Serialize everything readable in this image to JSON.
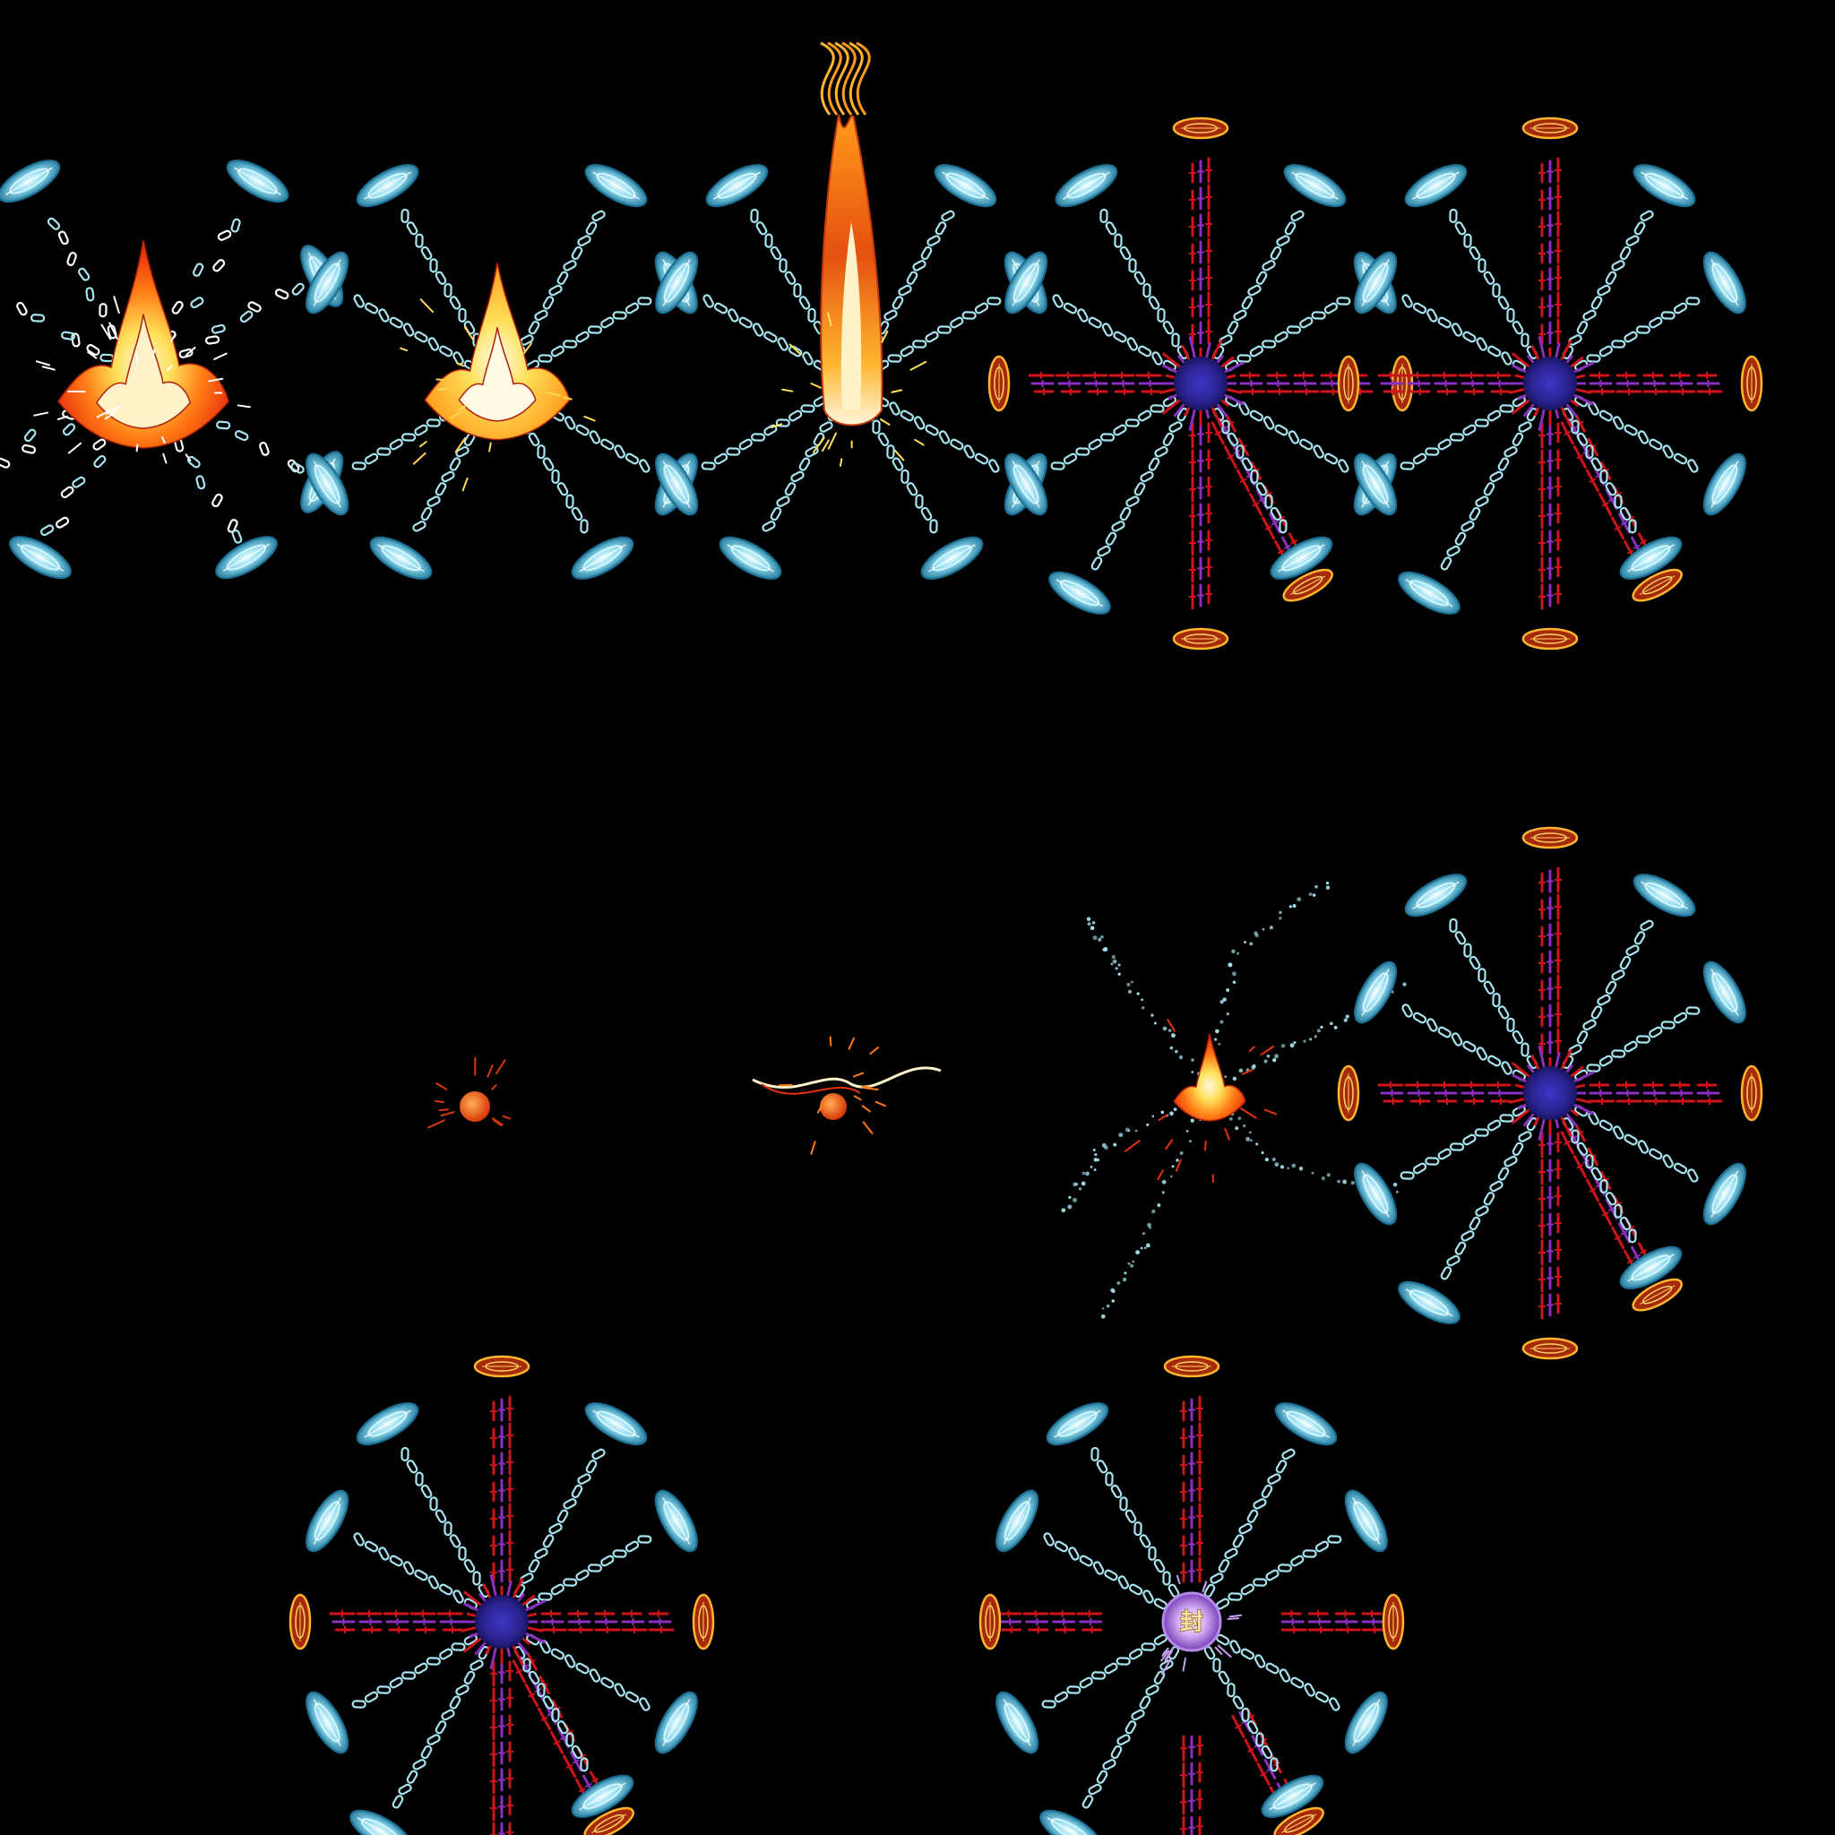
{
  "sheet": {
    "background": "#000000",
    "layout": {
      "columns": 5,
      "rows": 3
    },
    "palette": {
      "chain": "#a8e4f0",
      "chain_dark": "#4aa8c0",
      "crystal_light": "#d6f6ff",
      "crystal_mid": "#5bc6e6",
      "crystal_dark": "#1b6f93",
      "rune_red": "#d0131b",
      "rune_purple": "#8a2fc0",
      "plate_fill": "#a42a08",
      "plate_rim": "#ffb52e",
      "core": "#2a2390",
      "fire_red": "#e7300c",
      "fire_orange": "#ff7a14",
      "fire_yellow": "#ffe05a",
      "fire_white": "#fff7dc",
      "seal_glow": "#c79ff0"
    },
    "frames": [
      {
        "row": 0,
        "col": 0,
        "effect": "flame-burst",
        "chain": "broken",
        "runes": false
      },
      {
        "row": 0,
        "col": 1,
        "effect": "fire-splash",
        "chain": "full",
        "runes": false
      },
      {
        "row": 0,
        "col": 2,
        "effect": "fire-pillar",
        "chain": "full",
        "runes": false
      },
      {
        "row": 0,
        "col": 3,
        "effect": "core",
        "chain": "full",
        "runes": "full"
      },
      {
        "row": 0,
        "col": 4,
        "effect": "core",
        "chain": "full",
        "runes": "full"
      },
      {
        "row": 1,
        "col": 0,
        "effect": "empty",
        "chain": "none",
        "runes": false
      },
      {
        "row": 1,
        "col": 1,
        "effect": "ember",
        "chain": "none",
        "runes": false
      },
      {
        "row": 1,
        "col": 2,
        "effect": "ember-trail",
        "chain": "none",
        "runes": false
      },
      {
        "row": 1,
        "col": 3,
        "effect": "spark-wisps",
        "chain": "none",
        "runes": false
      },
      {
        "row": 1,
        "col": 4,
        "effect": "core",
        "chain": "full",
        "runes": "full"
      },
      {
        "row": 2,
        "col": 0,
        "effect": "empty",
        "chain": "none",
        "runes": false
      },
      {
        "row": 2,
        "col": 1,
        "effect": "core",
        "chain": "full",
        "runes": "full"
      },
      {
        "row": 2,
        "col": 2,
        "effect": "empty",
        "chain": "none",
        "runes": false
      },
      {
        "row": 2,
        "col": 3,
        "effect": "seal",
        "chain": "full",
        "runes": "gapped"
      },
      {
        "row": 2,
        "col": 4,
        "effect": "empty",
        "chain": "none",
        "runes": false
      }
    ],
    "seal_glyph": "封"
  }
}
